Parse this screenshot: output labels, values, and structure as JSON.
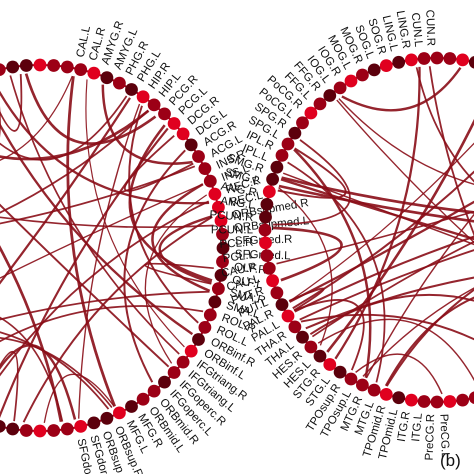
{
  "panel_b_label": "(b)",
  "colors": {
    "ring": "#a3001a",
    "node_dark": "#5c000c",
    "node_mid": "#9c0016",
    "node_bright": "#e0001f",
    "link": "#8a0d17",
    "text": "#111111"
  },
  "left_circle": {
    "labels": [
      "CAL.L",
      "CAL.R",
      "AMYG.R",
      "AMYG.L",
      "PHG.R",
      "PHG.L",
      "HIP.R",
      "HIP.L",
      "PCG.R",
      "PCG.L",
      "DCG.R",
      "DCG.L",
      "ACG.R",
      "ACG.L",
      "INS.R",
      "INS.L",
      "REC.R",
      "REC.L",
      "ORBsupmed.R",
      "ORBsupmed.L",
      "SFGmed.R",
      "SFGmed.L",
      "OLF.R",
      "OLF.L",
      "SMA.R",
      "SMA.L",
      "ROL.R",
      "ROL.L",
      "ORBinf.R",
      "ORBinf.L",
      "IFGtriang.R",
      "IFGtriang.L",
      "IFGoperc.R",
      "IFGoperc.L",
      "ORBmid.R",
      "ORBmid.L",
      "MFG.R",
      "MFG.L",
      "ORBsup.R",
      "ORBsup.L",
      "SFGdor.R",
      "SFGdor.L"
    ]
  },
  "right_circle": {
    "labels": [
      "CUN.R",
      "CUN.L",
      "LING.R",
      "LING.L",
      "SOG.R",
      "SOG.L",
      "MOG.R",
      "MOG.L",
      "IOG.R",
      "IOG.L",
      "FFG.R",
      "FFG.L",
      "PoCG.R",
      "PoCG.L",
      "SPG.R",
      "SPG.L",
      "IPL.R",
      "IPL.L",
      "SMG.R",
      "SMG.L",
      "ANG.R",
      "ANG.L",
      "PCUN.R",
      "PCUN.L",
      "PCL.R",
      "PCL.L",
      "CAU.R",
      "CAU.L",
      "PUT.R",
      "PUT.L",
      "PAL.R",
      "PAL.L",
      "THA.R",
      "THA.L",
      "HES.R",
      "HES.L",
      "STG.R",
      "STG.L",
      "TPOsup.R",
      "TPOsup.L",
      "MTG.R",
      "MTG.L",
      "TPOmid.R",
      "TPOmid.L",
      "ITG.R",
      "ITG.L",
      "PreCG.R",
      "PreCG.L"
    ]
  }
}
